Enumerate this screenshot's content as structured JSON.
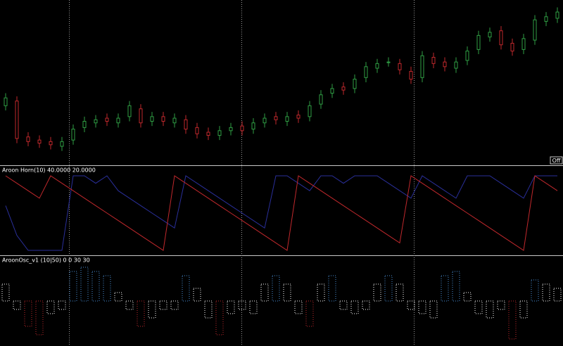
{
  "chart_data": [
    {
      "type": "candlestick",
      "open": [
        35,
        38,
        15,
        13,
        12,
        9,
        13,
        21,
        24,
        27,
        24,
        28,
        33,
        25,
        28,
        24,
        26,
        21,
        18,
        16,
        19,
        22,
        20,
        24,
        28,
        25,
        29,
        28,
        36,
        43,
        47,
        46,
        53,
        59,
        63,
        62,
        57,
        53,
        66,
        63,
        59,
        64,
        71,
        79,
        83,
        75,
        71,
        77,
        89,
        91
      ],
      "high": [
        43,
        41,
        18,
        16,
        15,
        15,
        23,
        28,
        29,
        30,
        30,
        38,
        36,
        31,
        31,
        30,
        29,
        24,
        21,
        22,
        24,
        25,
        27,
        30,
        31,
        31,
        32,
        38,
        45,
        49,
        50,
        55,
        63,
        65,
        66,
        65,
        60,
        70,
        69,
        66,
        66,
        73,
        83,
        85,
        86,
        78,
        81,
        93,
        95,
        98
      ],
      "low": [
        32,
        11,
        9,
        8,
        7,
        6,
        10,
        18,
        21,
        22,
        21,
        25,
        21,
        22,
        22,
        21,
        17,
        14,
        13,
        13,
        16,
        16,
        17,
        21,
        23,
        22,
        24,
        25,
        33,
        40,
        42,
        43,
        50,
        56,
        60,
        55,
        49,
        50,
        59,
        57,
        56,
        61,
        68,
        76,
        71,
        67,
        68,
        74,
        86,
        88
      ],
      "close": [
        40,
        14,
        12,
        11,
        10,
        12,
        20,
        25,
        26,
        25,
        27,
        35,
        24,
        28,
        25,
        27,
        20,
        17,
        16,
        19,
        21,
        19,
        24,
        27,
        26,
        28,
        27,
        35,
        42,
        46,
        45,
        52,
        60,
        62,
        63,
        58,
        52,
        67,
        62,
        60,
        63,
        70,
        80,
        82,
        74,
        70,
        78,
        90,
        92,
        95
      ],
      "up_color": "#2f9e44",
      "down_color": "#c0282c",
      "ylim": [
        0,
        100
      ],
      "button": "Off"
    },
    {
      "type": "line",
      "title": "Aroon Horn(10) 40.0000 20.0000",
      "ylim": [
        0,
        100
      ],
      "series": [
        {
          "color": "#2a2f9a",
          "values": [
            60,
            20,
            0,
            0,
            0,
            0,
            100,
            100,
            90,
            100,
            80,
            70,
            60,
            50,
            40,
            30,
            100,
            90,
            80,
            70,
            60,
            50,
            40,
            30,
            100,
            100,
            90,
            80,
            100,
            100,
            90,
            100,
            100,
            100,
            90,
            80,
            70,
            100,
            90,
            80,
            70,
            100,
            100,
            100,
            90,
            80,
            70,
            100,
            100,
            100
          ]
        },
        {
          "color": "#c0282c",
          "values": [
            100,
            90,
            80,
            70,
            100,
            90,
            80,
            70,
            60,
            50,
            40,
            30,
            20,
            10,
            0,
            100,
            90,
            80,
            70,
            60,
            50,
            40,
            30,
            20,
            10,
            0,
            100,
            90,
            80,
            70,
            60,
            50,
            40,
            30,
            20,
            10,
            100,
            90,
            80,
            70,
            60,
            50,
            40,
            30,
            20,
            10,
            0,
            100,
            90,
            80
          ]
        }
      ]
    },
    {
      "type": "histogram",
      "title": "AroonOsc_v1 (10|50) 0 0 30 30",
      "ylim": [
        -100,
        100
      ],
      "values": [
        40,
        -20,
        -60,
        -80,
        -30,
        -20,
        70,
        80,
        70,
        60,
        20,
        -20,
        -60,
        -40,
        -20,
        -20,
        60,
        30,
        -40,
        -80,
        -30,
        -20,
        -30,
        40,
        60,
        40,
        -30,
        -60,
        40,
        60,
        -20,
        -30,
        -20,
        40,
        60,
        40,
        -20,
        -30,
        -40,
        60,
        70,
        20,
        -30,
        -40,
        -20,
        -90,
        -40,
        50,
        40,
        30
      ],
      "colors": [
        "#ffffff",
        "#ffffff",
        "#c0282c",
        "#c0282c",
        "#ffffff",
        "#ffffff",
        "#4a8fd6",
        "#4a8fd6",
        "#4a8fd6",
        "#4a8fd6",
        "#ffffff",
        "#ffffff",
        "#c0282c",
        "#ffffff",
        "#ffffff",
        "#ffffff",
        "#4a8fd6",
        "#ffffff",
        "#ffffff",
        "#c0282c",
        "#ffffff",
        "#ffffff",
        "#ffffff",
        "#ffffff",
        "#4a8fd6",
        "#ffffff",
        "#ffffff",
        "#c0282c",
        "#ffffff",
        "#4a8fd6",
        "#ffffff",
        "#ffffff",
        "#ffffff",
        "#ffffff",
        "#4a8fd6",
        "#ffffff",
        "#ffffff",
        "#ffffff",
        "#ffffff",
        "#4a8fd6",
        "#4a8fd6",
        "#ffffff",
        "#ffffff",
        "#ffffff",
        "#ffffff",
        "#c0282c",
        "#ffffff",
        "#4a8fd6",
        "#ffffff",
        "#ffffff"
      ]
    }
  ]
}
